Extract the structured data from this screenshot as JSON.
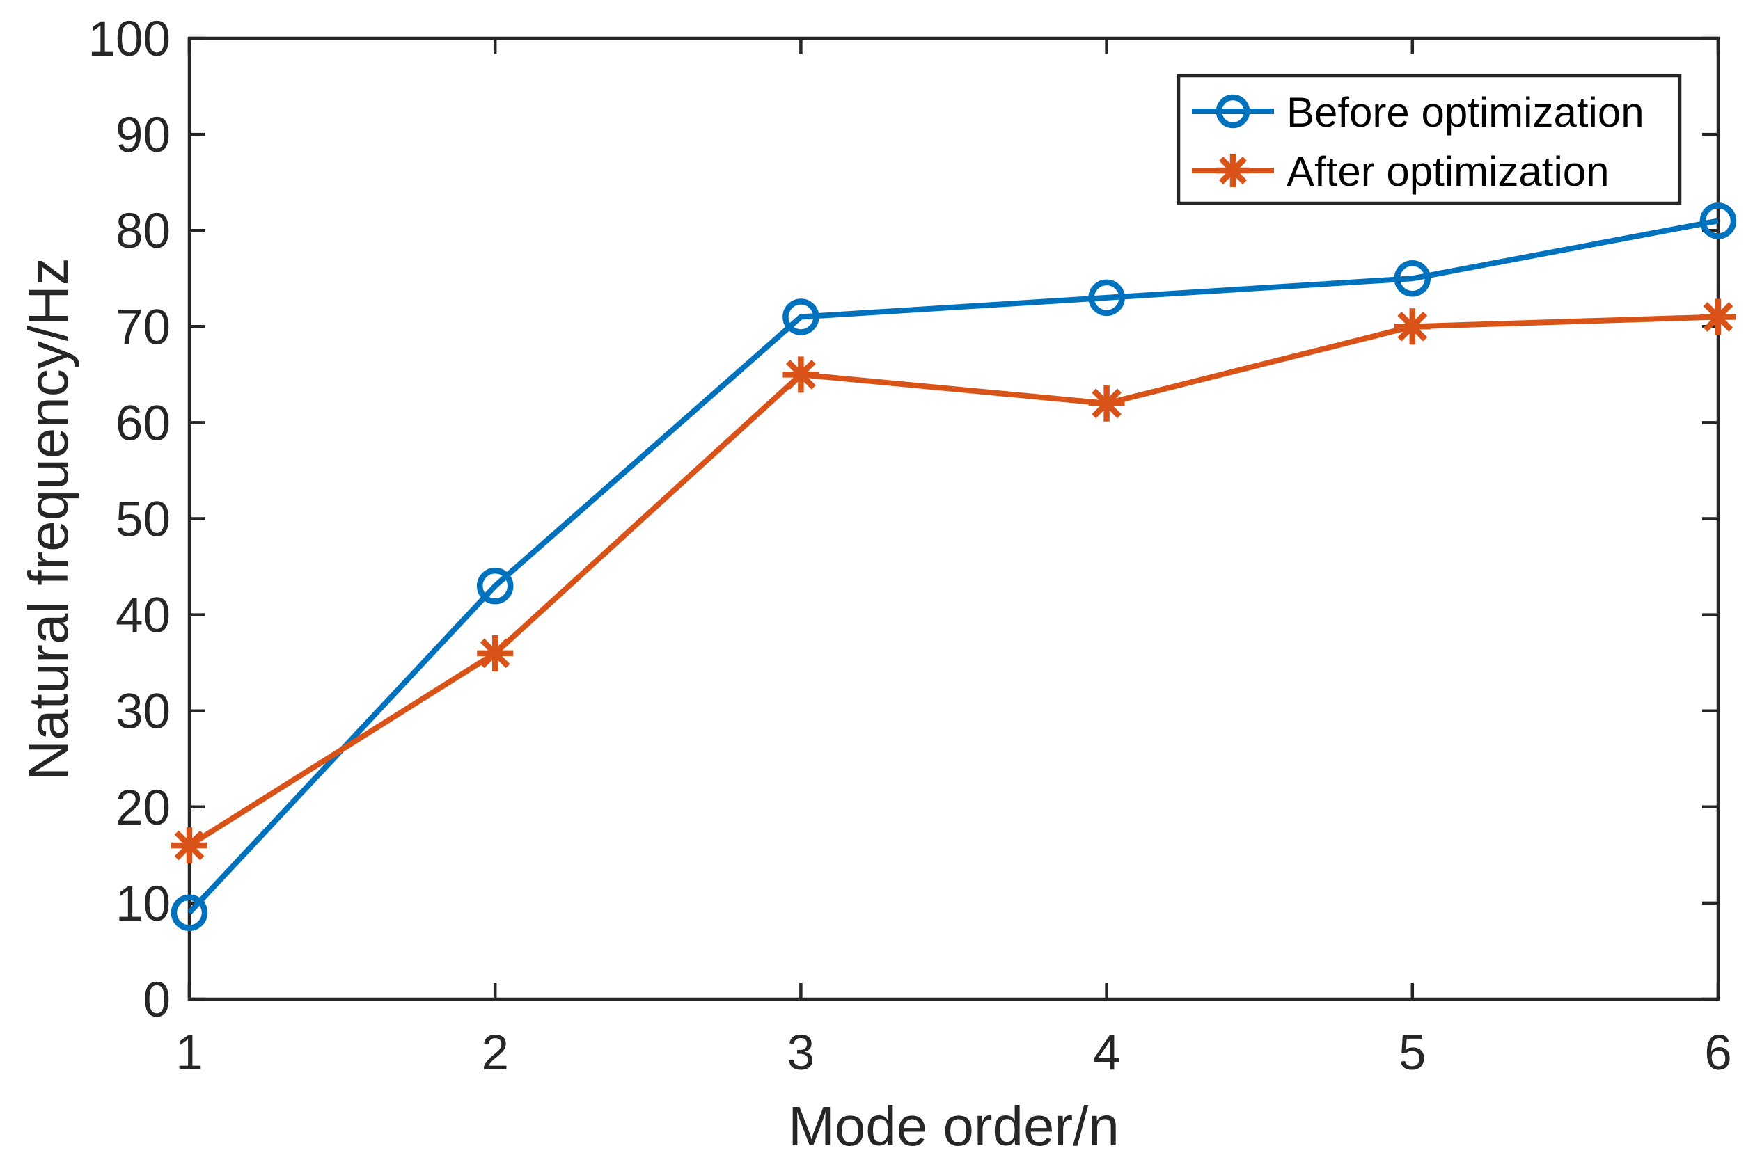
{
  "figure": {
    "background": "#ffffff",
    "axis_color": "#262626",
    "legend": {
      "border_color": "#262626",
      "text_color": "#000000",
      "position": "top-right"
    }
  },
  "chart_data": {
    "type": "line",
    "title": "",
    "xlabel": "Mode order/n",
    "ylabel": "Natural frequency/Hz",
    "x": [
      1,
      2,
      3,
      4,
      5,
      6
    ],
    "xticks": [
      1,
      2,
      3,
      4,
      5,
      6
    ],
    "yticks": [
      0,
      10,
      20,
      30,
      40,
      50,
      60,
      70,
      80,
      90,
      100
    ],
    "xlim": [
      1,
      6
    ],
    "ylim": [
      0,
      100
    ],
    "grid": false,
    "legend_position": "top-right",
    "series": [
      {
        "name": "Before optimization",
        "color": "#0072BD",
        "marker": "circle",
        "values": [
          9,
          43,
          71,
          73,
          75,
          81
        ]
      },
      {
        "name": "After optimization",
        "color": "#D95319",
        "marker": "asterisk",
        "values": [
          16,
          36,
          65,
          62,
          70,
          71
        ]
      }
    ]
  }
}
